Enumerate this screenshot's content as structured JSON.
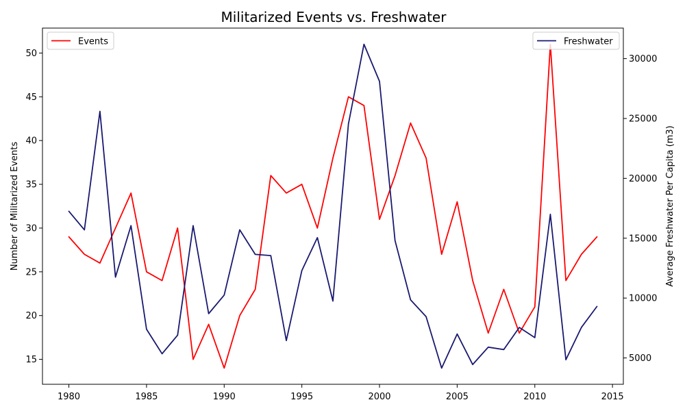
{
  "chart_data": {
    "type": "line",
    "title": "Militarized Events vs. Freshwater",
    "xlabel": "",
    "ylabel_left": "Number of Militarized Events",
    "ylabel_right": "Average Freshwater Per Capita (m3)",
    "x": [
      1980,
      1981,
      1982,
      1983,
      1984,
      1985,
      1986,
      1987,
      1988,
      1989,
      1990,
      1991,
      1992,
      1993,
      1994,
      1995,
      1996,
      1997,
      1998,
      1999,
      2000,
      2001,
      2002,
      2003,
      2004,
      2005,
      2006,
      2007,
      2008,
      2009,
      2010,
      2011,
      2012,
      2013,
      2014
    ],
    "xlim": [
      1978.3,
      2015.7
    ],
    "x_ticks": [
      1980,
      1985,
      1990,
      1995,
      2000,
      2005,
      2010,
      2015
    ],
    "ylim_left": [
      12.15,
      52.85
    ],
    "y_left_ticks": [
      15,
      20,
      25,
      30,
      35,
      40,
      45,
      50
    ],
    "ylim_right": [
      2800,
      32550
    ],
    "y_right_ticks": [
      5000,
      10000,
      15000,
      20000,
      25000,
      30000
    ],
    "grid": false,
    "series": [
      {
        "name": "Events",
        "axis": "left",
        "color": "#ff0000",
        "legend": "upper left",
        "values": [
          29,
          27,
          26,
          30,
          34,
          25,
          24,
          30,
          15,
          19,
          14,
          20,
          23,
          36,
          34,
          35,
          30,
          38,
          45,
          44,
          31,
          36,
          42,
          38,
          27,
          33,
          24,
          18,
          23,
          18,
          21,
          51,
          24,
          27,
          29
        ]
      },
      {
        "name": "Freshwater",
        "axis": "right",
        "color": "#191970",
        "legend": "upper right",
        "values": [
          17250,
          15700,
          25600,
          11750,
          16050,
          7400,
          5350,
          6900,
          16050,
          8700,
          10250,
          15700,
          13650,
          13550,
          6450,
          12300,
          15050,
          9750,
          24550,
          31200,
          28100,
          14800,
          9850,
          8450,
          4150,
          7000,
          4450,
          5900,
          5700,
          7550,
          6700,
          17000,
          4850,
          7550,
          9300
        ]
      }
    ]
  }
}
